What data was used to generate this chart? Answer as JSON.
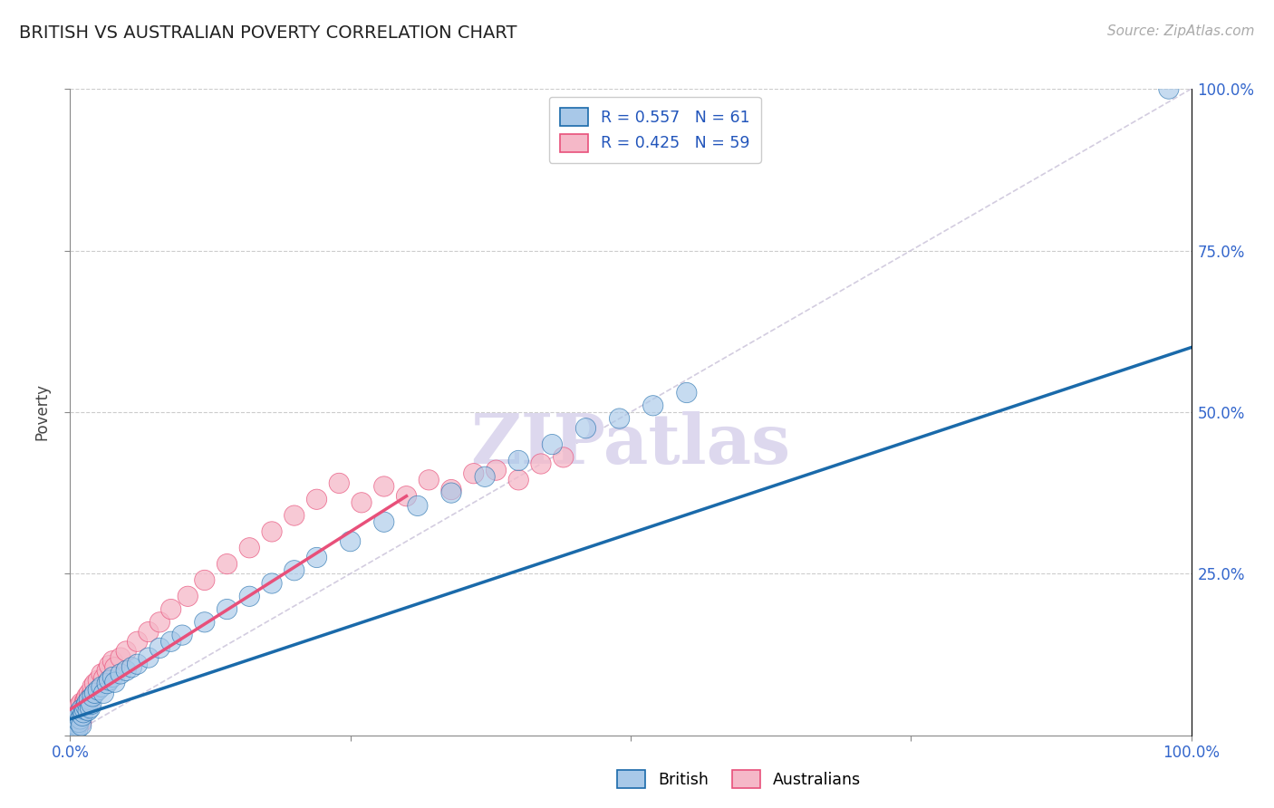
{
  "title": "BRITISH VS AUSTRALIAN POVERTY CORRELATION CHART",
  "source": "Source: ZipAtlas.com",
  "ylabel": "Poverty",
  "xlim": [
    0,
    1.0
  ],
  "ylim": [
    0,
    1.0
  ],
  "british_color": "#a8c8e8",
  "australian_color": "#f5b8c8",
  "british_line_color": "#1a6aaa",
  "australian_line_color": "#e8507a",
  "diag_line_color": "#c8c0d8",
  "r_british": 0.557,
  "n_british": 61,
  "r_australian": 0.425,
  "n_australian": 59,
  "legend_color": "#2255bb",
  "brit_scatter_x": [
    0.001,
    0.002,
    0.003,
    0.003,
    0.004,
    0.004,
    0.005,
    0.005,
    0.006,
    0.006,
    0.007,
    0.007,
    0.008,
    0.008,
    0.009,
    0.01,
    0.01,
    0.011,
    0.012,
    0.013,
    0.014,
    0.015,
    0.016,
    0.017,
    0.018,
    0.019,
    0.02,
    0.022,
    0.025,
    0.028,
    0.03,
    0.033,
    0.035,
    0.038,
    0.04,
    0.045,
    0.05,
    0.055,
    0.06,
    0.07,
    0.08,
    0.09,
    0.1,
    0.12,
    0.14,
    0.16,
    0.18,
    0.2,
    0.22,
    0.25,
    0.28,
    0.31,
    0.34,
    0.37,
    0.4,
    0.43,
    0.46,
    0.49,
    0.52,
    0.55,
    0.98
  ],
  "brit_scatter_y": [
    0.005,
    0.008,
    0.01,
    0.015,
    0.012,
    0.018,
    0.008,
    0.02,
    0.015,
    0.025,
    0.01,
    0.03,
    0.02,
    0.035,
    0.025,
    0.015,
    0.04,
    0.03,
    0.035,
    0.04,
    0.045,
    0.05,
    0.038,
    0.055,
    0.042,
    0.048,
    0.06,
    0.065,
    0.07,
    0.075,
    0.065,
    0.08,
    0.085,
    0.09,
    0.082,
    0.095,
    0.1,
    0.105,
    0.11,
    0.12,
    0.135,
    0.145,
    0.155,
    0.175,
    0.195,
    0.215,
    0.235,
    0.255,
    0.275,
    0.3,
    0.33,
    0.355,
    0.375,
    0.4,
    0.425,
    0.45,
    0.475,
    0.49,
    0.51,
    0.53,
    1.0
  ],
  "aus_scatter_x": [
    0.001,
    0.002,
    0.003,
    0.003,
    0.004,
    0.004,
    0.005,
    0.005,
    0.006,
    0.006,
    0.007,
    0.007,
    0.008,
    0.008,
    0.009,
    0.01,
    0.01,
    0.011,
    0.012,
    0.013,
    0.014,
    0.015,
    0.016,
    0.017,
    0.018,
    0.019,
    0.02,
    0.022,
    0.025,
    0.028,
    0.03,
    0.033,
    0.035,
    0.038,
    0.04,
    0.045,
    0.05,
    0.06,
    0.07,
    0.08,
    0.09,
    0.105,
    0.12,
    0.14,
    0.16,
    0.18,
    0.2,
    0.22,
    0.24,
    0.26,
    0.28,
    0.3,
    0.32,
    0.34,
    0.36,
    0.38,
    0.4,
    0.42,
    0.44
  ],
  "aus_scatter_y": [
    0.01,
    0.015,
    0.012,
    0.02,
    0.018,
    0.025,
    0.015,
    0.03,
    0.022,
    0.035,
    0.018,
    0.04,
    0.028,
    0.045,
    0.032,
    0.02,
    0.05,
    0.038,
    0.045,
    0.052,
    0.055,
    0.06,
    0.048,
    0.065,
    0.055,
    0.062,
    0.075,
    0.08,
    0.085,
    0.095,
    0.088,
    0.1,
    0.108,
    0.115,
    0.105,
    0.12,
    0.13,
    0.145,
    0.16,
    0.175,
    0.195,
    0.215,
    0.24,
    0.265,
    0.29,
    0.315,
    0.34,
    0.365,
    0.39,
    0.36,
    0.385,
    0.37,
    0.395,
    0.38,
    0.405,
    0.41,
    0.395,
    0.42,
    0.43
  ],
  "brit_line_x0": 0.0,
  "brit_line_x1": 1.0,
  "brit_line_y0": 0.025,
  "brit_line_y1": 0.6,
  "aus_line_x0": 0.0,
  "aus_line_x1": 0.3,
  "aus_line_y0": 0.04,
  "aus_line_y1": 0.37
}
